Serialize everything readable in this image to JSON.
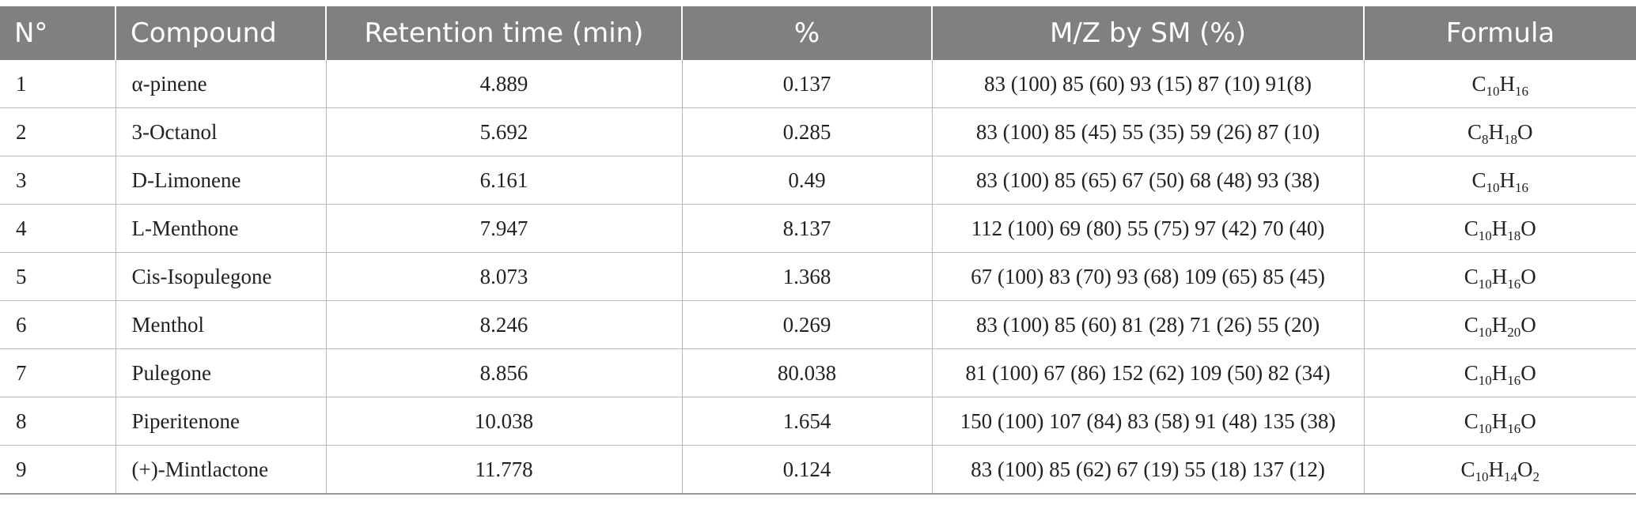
{
  "table": {
    "headers": [
      "N°",
      "Compound",
      "Retention time (min)",
      "%",
      "M/Z by SM (%)",
      "Formula"
    ],
    "rows": [
      {
        "n": "1",
        "compound": "α-pinene",
        "retention_time": "4.889",
        "percent": "0.137",
        "mz": "83 (100) 85 (60) 93 (15) 87 (10) 91(8)",
        "formula": [
          {
            "t": "C"
          },
          {
            "s": "10"
          },
          {
            "t": "H"
          },
          {
            "s": "16"
          }
        ]
      },
      {
        "n": "2",
        "compound": "3-Octanol",
        "retention_time": "5.692",
        "percent": "0.285",
        "mz": "83 (100) 85 (45) 55 (35) 59 (26) 87 (10)",
        "formula": [
          {
            "t": "C"
          },
          {
            "s": "8"
          },
          {
            "t": "H"
          },
          {
            "s": "18"
          },
          {
            "t": "O"
          }
        ]
      },
      {
        "n": "3",
        "compound": "D-Limonene",
        "retention_time": "6.161",
        "percent": "0.49",
        "mz": "83 (100) 85 (65) 67 (50) 68 (48) 93 (38)",
        "formula": [
          {
            "t": "C"
          },
          {
            "s": "10"
          },
          {
            "t": "H"
          },
          {
            "s": "16"
          }
        ]
      },
      {
        "n": "4",
        "compound": "L-Menthone",
        "retention_time": "7.947",
        "percent": "8.137",
        "mz": "112 (100) 69 (80) 55 (75) 97 (42) 70 (40)",
        "formula": [
          {
            "t": "C"
          },
          {
            "s": "10"
          },
          {
            "t": "H"
          },
          {
            "s": "18"
          },
          {
            "t": "O"
          }
        ]
      },
      {
        "n": "5",
        "compound": "Cis-Isopulegone",
        "retention_time": "8.073",
        "percent": "1.368",
        "mz": "67 (100) 83 (70) 93 (68) 109 (65) 85 (45)",
        "formula": [
          {
            "t": "C"
          },
          {
            "s": "10"
          },
          {
            "t": "H"
          },
          {
            "s": "16"
          },
          {
            "t": "O"
          }
        ]
      },
      {
        "n": "6",
        "compound": "Menthol",
        "retention_time": "8.246",
        "percent": "0.269",
        "mz": "83 (100) 85 (60) 81 (28) 71 (26) 55 (20)",
        "formula": [
          {
            "t": "C"
          },
          {
            "s": "10"
          },
          {
            "t": "H"
          },
          {
            "s": "20"
          },
          {
            "t": "O"
          }
        ]
      },
      {
        "n": "7",
        "compound": "Pulegone",
        "retention_time": "8.856",
        "percent": "80.038",
        "mz": "81 (100) 67 (86) 152 (62) 109 (50) 82 (34)",
        "formula": [
          {
            "t": "C"
          },
          {
            "s": "10"
          },
          {
            "t": "H"
          },
          {
            "s": "16"
          },
          {
            "t": "O"
          }
        ]
      },
      {
        "n": "8",
        "compound": "Piperitenone",
        "retention_time": "10.038",
        "percent": "1.654",
        "mz": "150 (100) 107 (84) 83 (58) 91 (48) 135 (38)",
        "formula": [
          {
            "t": "C"
          },
          {
            "s": "10"
          },
          {
            "t": "H"
          },
          {
            "s": "16"
          },
          {
            "t": "O"
          }
        ]
      },
      {
        "n": "9",
        "compound": "(+)-Mintlactone",
        "retention_time": "11.778",
        "percent": "0.124",
        "mz": "83 (100) 85 (62) 67 (19) 55 (18) 137 (12)",
        "formula": [
          {
            "t": "C"
          },
          {
            "s": "10"
          },
          {
            "t": "H"
          },
          {
            "s": "14"
          },
          {
            "t": "O"
          },
          {
            "s": "2"
          }
        ]
      }
    ]
  },
  "colors": {
    "header_bg": "#808080",
    "header_text": "#ffffff",
    "grid_line": "#b8b8b8",
    "body_text": "#222222"
  }
}
